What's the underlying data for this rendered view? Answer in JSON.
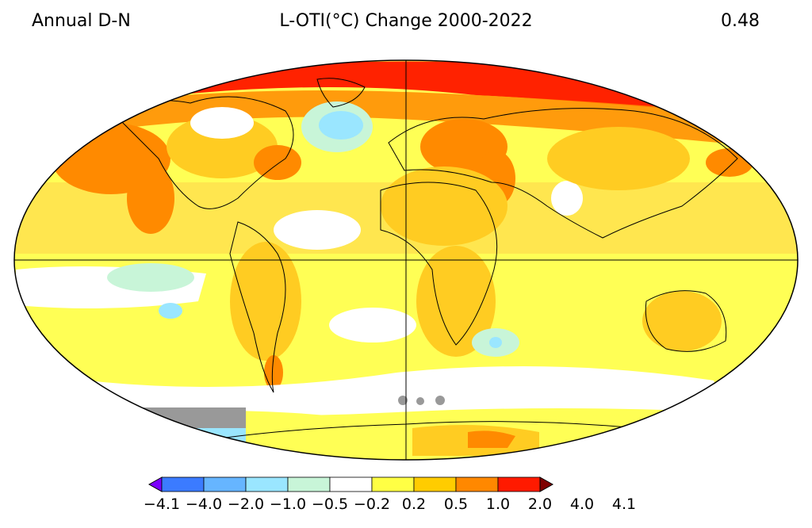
{
  "header": {
    "left": "Annual D-N",
    "center": "L-OTI(°C) Change 2000-2022",
    "right": "0.48"
  },
  "legend": {
    "colors": [
      "#7b00ff",
      "#3b7bff",
      "#66b5ff",
      "#9ae6ff",
      "#c8f5d8",
      "#ffffff",
      "#ffff44",
      "#ffcc00",
      "#ff8800",
      "#ff1a00",
      "#7f0000"
    ],
    "labels": [
      "−4.1",
      "−4.0",
      "−2.0",
      "−1.0",
      "−0.5",
      "−0.2",
      "0.2",
      "0.5",
      "1.0",
      "2.0",
      "4.0",
      "4.1"
    ]
  },
  "map": {
    "projection": "robinson",
    "no_data_color": "#999999",
    "ocean_base_color": "#ffff66"
  }
}
